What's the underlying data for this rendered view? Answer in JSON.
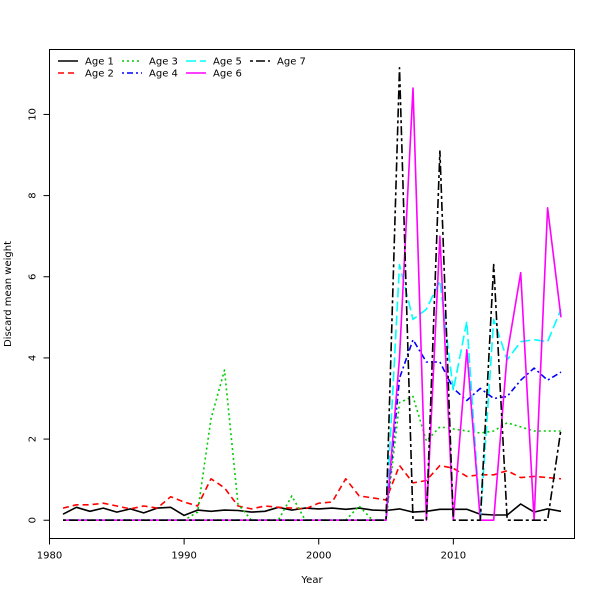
{
  "chart_data": {
    "type": "line",
    "title": "",
    "xlabel": "Year",
    "ylabel": "Discard mean weight",
    "xlim": [
      1980,
      2019
    ],
    "ylim": [
      -0.45,
      11.6
    ],
    "xticks": [
      1980,
      1990,
      2000,
      2010
    ],
    "yticks": [
      0,
      2,
      4,
      6,
      8,
      10
    ],
    "grid": false,
    "legend_position": "top-left",
    "x": [
      1981,
      1982,
      1983,
      1984,
      1985,
      1986,
      1987,
      1988,
      1989,
      1990,
      1991,
      1992,
      1993,
      1994,
      1995,
      1996,
      1997,
      1998,
      1999,
      2000,
      2001,
      2002,
      2003,
      2004,
      2005,
      2006,
      2007,
      2008,
      2009,
      2010,
      2011,
      2012,
      2013,
      2014,
      2015,
      2016,
      2017,
      2018
    ],
    "series": [
      {
        "name": "Age 1",
        "color": "#000000",
        "dash": "solid",
        "values": [
          0.15,
          0.32,
          0.22,
          0.3,
          0.2,
          0.28,
          0.18,
          0.3,
          0.32,
          0.12,
          0.25,
          0.22,
          0.25,
          0.24,
          0.2,
          0.22,
          0.32,
          0.25,
          0.3,
          0.28,
          0.3,
          0.27,
          0.3,
          0.25,
          0.24,
          0.28,
          0.2,
          0.22,
          0.27,
          0.27,
          0.27,
          0.15,
          0.13,
          0.13,
          0.4,
          0.2,
          0.28,
          0.22
        ]
      },
      {
        "name": "Age 2",
        "color": "#ff0000",
        "dash": "dashed",
        "values": [
          0.3,
          0.38,
          0.38,
          0.42,
          0.35,
          0.28,
          0.35,
          0.3,
          0.58,
          0.45,
          0.35,
          1.02,
          0.8,
          0.35,
          0.28,
          0.35,
          0.32,
          0.3,
          0.28,
          0.42,
          0.45,
          1.02,
          0.6,
          0.55,
          0.5,
          1.35,
          0.92,
          0.98,
          1.35,
          1.28,
          1.08,
          1.12,
          1.12,
          1.22,
          1.05,
          1.08,
          1.05,
          1.02
        ]
      },
      {
        "name": "Age 3",
        "color": "#00cd00",
        "dash": "dotted",
        "values": [
          0,
          0,
          0,
          0,
          0,
          0,
          0,
          0,
          0,
          0,
          0.2,
          2.5,
          3.7,
          0.4,
          0,
          0,
          0,
          0.6,
          0,
          0,
          0,
          0,
          0.35,
          0,
          0,
          2.9,
          3.05,
          1.95,
          2.3,
          2.25,
          2.2,
          2.15,
          2.2,
          2.4,
          2.3,
          2.2,
          2.2,
          2.2
        ]
      },
      {
        "name": "Age 4",
        "color": "#0000ff",
        "dash": "dotdash",
        "values": [
          0,
          0,
          0,
          0,
          0,
          0,
          0,
          0,
          0,
          0,
          0,
          0,
          0,
          0,
          0,
          0,
          0,
          0,
          0,
          0,
          0,
          0,
          0,
          0,
          0,
          3.5,
          4.45,
          3.9,
          3.9,
          3.25,
          2.95,
          3.25,
          3.0,
          3.05,
          3.45,
          3.75,
          3.45,
          3.65
        ]
      },
      {
        "name": "Age 5",
        "color": "#00ffff",
        "dash": "longdash",
        "values": [
          0,
          0,
          0,
          0,
          0,
          0,
          0,
          0,
          0,
          0,
          0,
          0,
          0,
          0,
          0,
          0,
          0,
          0,
          0,
          0,
          0,
          0,
          0,
          0,
          0,
          6.3,
          4.95,
          5.2,
          5.9,
          3.2,
          4.9,
          0,
          4.95,
          3.95,
          4.4,
          4.45,
          4.4,
          5.2
        ]
      },
      {
        "name": "Age 6",
        "color": "#ff00ff",
        "dash": "solid",
        "values": [
          0,
          0,
          0,
          0,
          0,
          0,
          0,
          0,
          0,
          0,
          0,
          0,
          0,
          0,
          0,
          0,
          0,
          0,
          0,
          0,
          0,
          0,
          0,
          0,
          0,
          4.0,
          10.65,
          0,
          7.0,
          0,
          4.2,
          0,
          0,
          4.1,
          6.1,
          0,
          7.7,
          5.0
        ]
      },
      {
        "name": "Age 7",
        "color": "#000000",
        "dash": "twodash",
        "values": [
          0,
          0,
          0,
          0,
          0,
          0,
          0,
          0,
          0,
          0,
          0,
          0,
          0,
          0,
          0,
          0,
          0,
          0,
          0,
          0,
          0,
          0,
          0,
          0,
          0,
          11.15,
          0,
          0,
          9.1,
          0,
          0,
          0,
          6.3,
          0,
          0,
          0,
          0,
          2.25
        ]
      }
    ]
  }
}
